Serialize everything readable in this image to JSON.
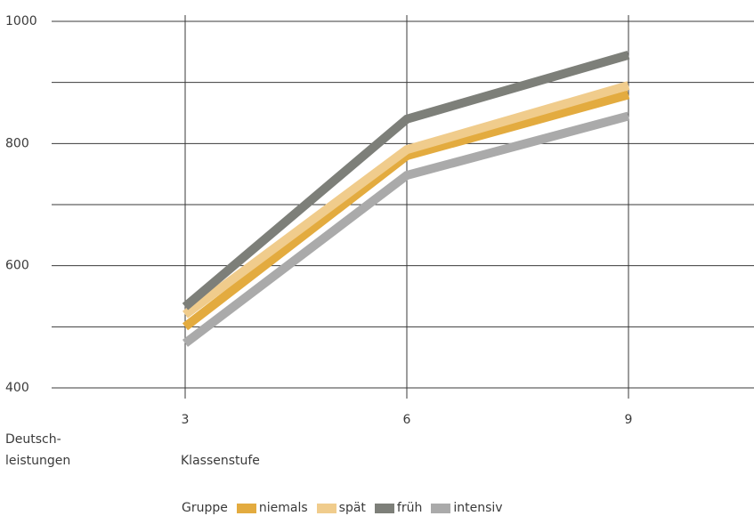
{
  "chart_data": {
    "type": "line",
    "title": "",
    "xlabel": "Klassenstufe",
    "ylabel": "Deutsch-\nleistungen",
    "x": [
      3,
      6,
      9
    ],
    "x_tick_labels": [
      "3",
      "6",
      "9"
    ],
    "y_tick_labels": [
      "400",
      "600",
      "800",
      "1000"
    ],
    "ylim": [
      400,
      1000
    ],
    "grid": true,
    "legend_title": "Gruppe",
    "legend_position": "bottom",
    "series": [
      {
        "name": "niemals",
        "color": "#e3ab3f",
        "values": [
          500,
          780,
          880
        ]
      },
      {
        "name": "spät",
        "color": "#f0cc8c",
        "values": [
          520,
          790,
          895
        ]
      },
      {
        "name": "früh",
        "color": "#7d7f79",
        "values": [
          533,
          840,
          945
        ]
      },
      {
        "name": "intensiv",
        "color": "#aaaaaa",
        "values": [
          473,
          748,
          845
        ]
      }
    ]
  }
}
